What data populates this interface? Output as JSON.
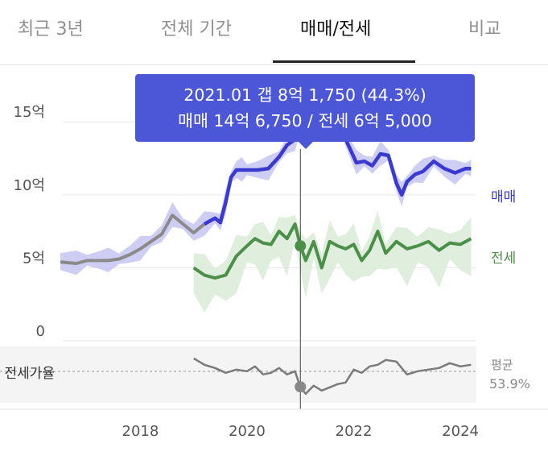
{
  "tabs": [
    {
      "label": "최근 3년",
      "active": false
    },
    {
      "label": "전체 기간",
      "active": false
    },
    {
      "label": "매매/전세",
      "active": true
    },
    {
      "label": "비교",
      "active": false
    }
  ],
  "tooltip": {
    "line1": "2021.01  갭 8억 1,750 (44.3%)",
    "line2": "매매 14억 6,750 / 전세 6억 5,000"
  },
  "colors": {
    "sale": "#3a3ad0",
    "sale_band": "#c9c9f3",
    "sale_earlier": "#8a8a8a",
    "jeonse": "#4b8f48",
    "jeonse_band": "#dcecd9",
    "ratio": "#7a7a7a",
    "accent": "#4b57d6"
  },
  "chart_data": {
    "type": "line",
    "y_unit": "억",
    "yticks": [
      {
        "value": 15,
        "label": "15억"
      },
      {
        "value": 10,
        "label": "10억"
      },
      {
        "value": 5,
        "label": "5억"
      },
      {
        "value": 0,
        "label": "0"
      }
    ],
    "ylim": [
      0,
      17
    ],
    "xlim": [
      2016.5,
      2024.3
    ],
    "xticks": [
      {
        "value": 2018,
        "label": "2018"
      },
      {
        "value": 2020,
        "label": "2020"
      },
      {
        "value": 2022,
        "label": "2022"
      },
      {
        "value": 2024,
        "label": "2024"
      }
    ],
    "grid": true,
    "series": [
      {
        "name": "매매",
        "role": "sale",
        "x": [
          2016.5,
          2016.8,
          2017.0,
          2017.2,
          2017.4,
          2017.6,
          2017.8,
          2018.0,
          2018.2,
          2018.4,
          2018.6,
          2018.8,
          2019.0,
          2019.2,
          2019.4,
          2019.5,
          2019.6,
          2019.7,
          2019.8,
          2019.9,
          2020.0,
          2020.2,
          2020.4,
          2020.6,
          2020.75,
          2020.9,
          2021.0,
          2021.1,
          2021.2,
          2021.3,
          2021.45,
          2021.6,
          2021.75,
          2021.9,
          2022.05,
          2022.2,
          2022.35,
          2022.5,
          2022.65,
          2022.8,
          2022.9,
          2023.0,
          2023.15,
          2023.3,
          2023.5,
          2023.7,
          2023.9,
          2024.1,
          2024.2
        ],
        "y": [
          5.4,
          5.3,
          5.5,
          5.5,
          5.5,
          5.6,
          5.9,
          6.3,
          6.8,
          7.3,
          8.6,
          8.0,
          7.4,
          8.0,
          8.4,
          8.1,
          9.5,
          11.2,
          11.7,
          11.7,
          11.7,
          11.7,
          11.8,
          12.6,
          13.4,
          13.8,
          14.7,
          14.9,
          14.8,
          14.2,
          14.3,
          14.5,
          14.6,
          13.4,
          12.2,
          12.3,
          12.0,
          12.8,
          12.7,
          10.8,
          10.0,
          10.9,
          11.4,
          11.6,
          12.3,
          11.8,
          11.5,
          11.8,
          11.8
        ],
        "split_x": 2019.3
      },
      {
        "name": "전세",
        "role": "jeonse",
        "x": [
          2019.0,
          2019.2,
          2019.4,
          2019.6,
          2019.8,
          2020.0,
          2020.15,
          2020.3,
          2020.45,
          2020.6,
          2020.75,
          2020.9,
          2021.0,
          2021.1,
          2021.25,
          2021.4,
          2021.55,
          2021.7,
          2021.85,
          2022.0,
          2022.15,
          2022.3,
          2022.45,
          2022.6,
          2022.8,
          2023.0,
          2023.2,
          2023.4,
          2023.6,
          2023.8,
          2024.0,
          2024.2
        ],
        "y": [
          5.0,
          4.5,
          4.3,
          4.5,
          5.8,
          6.5,
          7.0,
          6.7,
          6.6,
          7.5,
          7.0,
          8.0,
          6.5,
          5.5,
          6.8,
          5.0,
          6.8,
          6.5,
          6.3,
          6.6,
          5.5,
          6.2,
          7.5,
          6.0,
          6.8,
          6.3,
          6.5,
          6.8,
          6.2,
          6.7,
          6.6,
          7.0
        ]
      },
      {
        "name": "전세가율",
        "role": "ratio",
        "x": [
          2019.0,
          2019.2,
          2019.4,
          2019.6,
          2019.8,
          2020.0,
          2020.15,
          2020.3,
          2020.45,
          2020.6,
          2020.75,
          2020.9,
          2021.0,
          2021.1,
          2021.25,
          2021.4,
          2021.55,
          2021.7,
          2021.85,
          2022.0,
          2022.15,
          2022.3,
          2022.45,
          2022.6,
          2022.8,
          2023.0,
          2023.2,
          2023.4,
          2023.6,
          2023.8,
          2024.0,
          2024.2
        ],
        "y": [
          62,
          58,
          56,
          53,
          55,
          54,
          57,
          52,
          53,
          56,
          52,
          54,
          44,
          40,
          45,
          42,
          44,
          46,
          47,
          55,
          53,
          57,
          58,
          61,
          60,
          52,
          54,
          55,
          56,
          59,
          57,
          58
        ]
      }
    ],
    "ratio_average": {
      "label": "평균",
      "value_label": "53.9%",
      "value": 53.9,
      "axis_label": "전세가율"
    },
    "highlight": {
      "x": 2021.0,
      "sale": 14.675,
      "jeonse": 6.5,
      "ratio": 44.3
    }
  }
}
